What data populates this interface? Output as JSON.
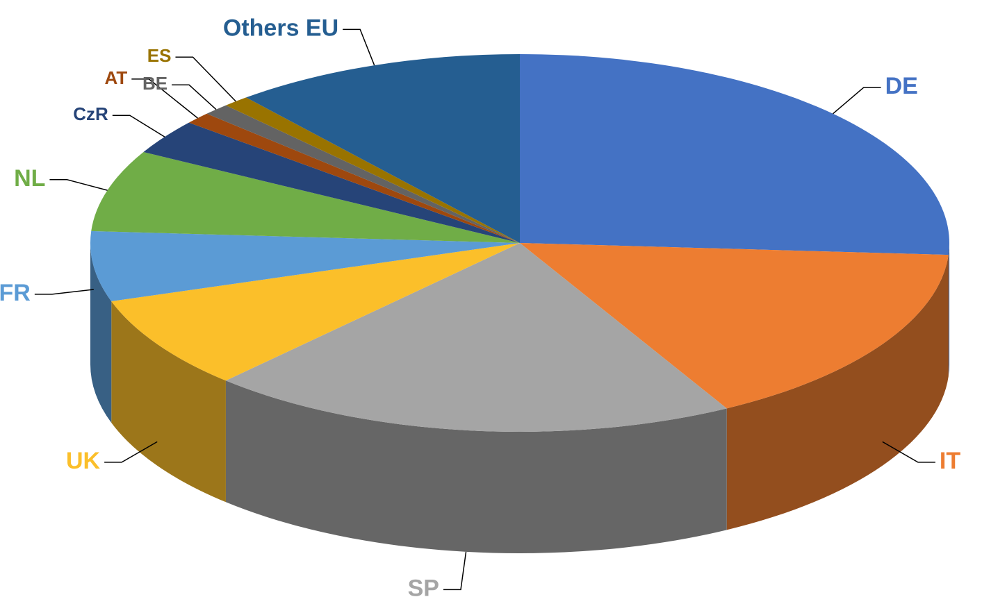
{
  "chart_data": {
    "type": "pie",
    "categories": [
      "DE",
      "IT",
      "SP",
      "UK",
      "FR",
      "NL",
      "CzR",
      "AT",
      "BE",
      "ES",
      "Others EU"
    ],
    "values": [
      26,
      16,
      20,
      8,
      6,
      7,
      3,
      1,
      1,
      1,
      11
    ],
    "colors": [
      "#4472c4",
      "#ed7d31",
      "#a5a5a5",
      "#fbbf2a",
      "#5b9bd5",
      "#70ad47",
      "#264478",
      "#9e480e",
      "#636363",
      "#997300",
      "#255e91"
    ]
  }
}
